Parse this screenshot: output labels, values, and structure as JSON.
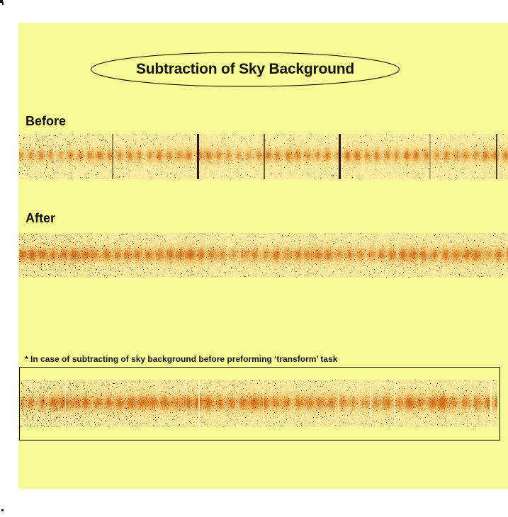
{
  "title": {
    "text": "Subtraction of Sky Background"
  },
  "sections": {
    "before": {
      "label": "Before"
    },
    "after": {
      "label": "After"
    },
    "note": {
      "text": "* In case of subtracting of sky background before preforming ‘transform’ task"
    }
  },
  "colors": {
    "page_background": "#FFFFFF",
    "slide_background": "#F7FA94",
    "outline": "#000000",
    "strip_base": "#FAEFA4",
    "strip_orange": "#E08A28",
    "strip_band": "#C8600F",
    "strip_speckle_dark": "#501E04",
    "bright_line": "#FDF6C8",
    "dark_line": "#1E0800"
  },
  "strips": {
    "before": {
      "name": "before-spectrum",
      "seed": 7,
      "band_center": 0.47,
      "band_sigma": 0.1,
      "band_strength": 0.78,
      "bead_freq": 0.45,
      "bead_amp": 0.26,
      "speckle": 0.55,
      "dot_p": 0.012,
      "dark_lines": [
        [
          131,
          2,
          0.45
        ],
        [
          251,
          3,
          0.92
        ],
        [
          345,
          2,
          0.65
        ],
        [
          451,
          3,
          0.92
        ],
        [
          579,
          2,
          0.28
        ],
        [
          673,
          2,
          0.75
        ]
      ],
      "bright_lines": []
    },
    "after": {
      "name": "after-spectrum",
      "seed": 13,
      "band_center": 0.48,
      "band_sigma": 0.115,
      "band_strength": 0.92,
      "bead_freq": 0.42,
      "bead_amp": 0.16,
      "speckle": 0.7,
      "dot_p": 0.02,
      "dark_lines": [],
      "bright_lines": []
    },
    "transformed": {
      "name": "sky-subtracted-before-transform-spectrum",
      "seed": 21,
      "band_center": 0.48,
      "band_sigma": 0.115,
      "band_strength": 0.95,
      "bead_freq": 0.4,
      "bead_amp": 0.16,
      "speckle": 0.75,
      "dot_p": 0.022,
      "dark_lines": [],
      "bright_lines": [
        [
          63,
          1,
          0.8
        ],
        [
          233,
          1,
          0.85
        ],
        [
          251,
          2,
          0.9
        ],
        [
          342,
          1,
          0.85
        ],
        [
          448,
          1,
          0.8
        ],
        [
          493,
          1,
          0.8
        ],
        [
          527,
          1,
          0.75
        ],
        [
          576,
          1,
          0.8
        ],
        [
          638,
          1,
          0.7
        ],
        [
          663,
          2,
          0.9
        ]
      ]
    }
  }
}
